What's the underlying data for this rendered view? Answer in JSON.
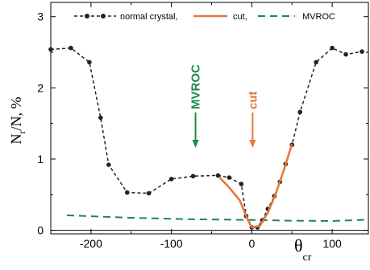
{
  "chart_data": {
    "type": "line",
    "xlabel_main": "θ",
    "xlabel_sub": "cr",
    "ylabel_main": "N",
    "ylabel_sub": "r",
    "ylabel_rest": "/N, %",
    "xlim": [
      -250,
      145
    ],
    "ylim": [
      -0.05,
      3.2
    ],
    "x_ticks": [
      -200,
      -100,
      0,
      100
    ],
    "y_ticks": [
      0,
      1,
      2,
      3
    ],
    "y_minor": [
      0.5,
      1.5,
      2.5
    ],
    "x_minor": [
      -150,
      -50,
      50
    ],
    "grid": false,
    "legend_position": "top",
    "colors": {
      "normal": "#222222",
      "cut": "#e8763a",
      "mvroc": "#1a8a4a"
    },
    "series": [
      {
        "name": "normal crystal,",
        "style": "dashed-dots",
        "x": [
          -250,
          -225,
          -202,
          -188,
          -178,
          -155,
          -128,
          -100,
          -73,
          -42,
          -28,
          -13,
          -7,
          0,
          7,
          13,
          20,
          28,
          35,
          42,
          50,
          60,
          80,
          100,
          117,
          137
        ],
        "y": [
          2.54,
          2.56,
          2.36,
          1.58,
          0.92,
          0.53,
          0.52,
          0.72,
          0.76,
          0.77,
          0.74,
          0.65,
          0.2,
          0.04,
          0.04,
          0.14,
          0.3,
          0.48,
          0.68,
          0.93,
          1.2,
          1.66,
          2.36,
          2.56,
          2.47,
          2.51
        ]
      },
      {
        "name": "cut,",
        "style": "solid",
        "x": [
          -40,
          -28,
          -15,
          -5,
          0,
          10,
          20,
          30,
          40,
          50
        ],
        "y": [
          0.74,
          0.6,
          0.42,
          0.15,
          0.04,
          0.06,
          0.25,
          0.52,
          0.85,
          1.21
        ]
      },
      {
        "name": "MVROC",
        "style": "dashed",
        "x": [
          -230,
          -150,
          -75,
          0,
          50,
          100,
          145
        ],
        "y": [
          0.21,
          0.175,
          0.155,
          0.145,
          0.135,
          0.13,
          0.15
        ]
      }
    ],
    "annotations": [
      {
        "text": "MVROC",
        "x": -70,
        "color": "#1a8a4a"
      },
      {
        "text": "cut",
        "x": 1,
        "color": "#e8763a"
      }
    ]
  }
}
